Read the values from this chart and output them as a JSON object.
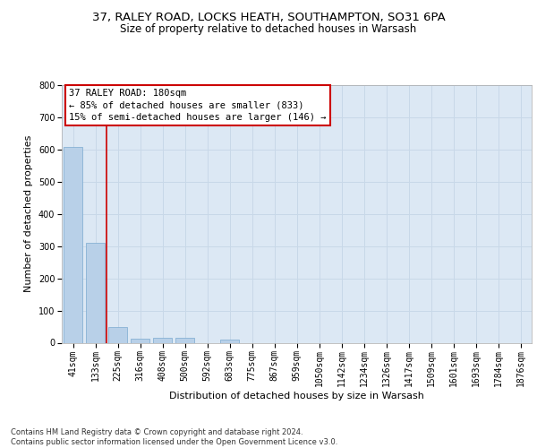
{
  "title1": "37, RALEY ROAD, LOCKS HEATH, SOUTHAMPTON, SO31 6PA",
  "title2": "Size of property relative to detached houses in Warsash",
  "xlabel": "Distribution of detached houses by size in Warsash",
  "ylabel": "Number of detached properties",
  "categories": [
    "41sqm",
    "133sqm",
    "225sqm",
    "316sqm",
    "408sqm",
    "500sqm",
    "592sqm",
    "683sqm",
    "775sqm",
    "867sqm",
    "959sqm",
    "1050sqm",
    "1142sqm",
    "1234sqm",
    "1326sqm",
    "1417sqm",
    "1509sqm",
    "1601sqm",
    "1693sqm",
    "1784sqm",
    "1876sqm"
  ],
  "values": [
    608,
    311,
    50,
    12,
    14,
    14,
    0,
    10,
    0,
    0,
    0,
    0,
    0,
    0,
    0,
    0,
    0,
    0,
    0,
    0,
    0
  ],
  "bar_color": "#b8d0e8",
  "bar_edge_color": "#7aaad0",
  "grid_color": "#c8d8e8",
  "background_color": "#dce8f4",
  "vline_color": "#cc0000",
  "annotation_text": "37 RALEY ROAD: 180sqm\n← 85% of detached houses are smaller (833)\n15% of semi-detached houses are larger (146) →",
  "annotation_box_color": "#ffffff",
  "annotation_box_edge": "#cc0000",
  "ylim": [
    0,
    800
  ],
  "yticks": [
    0,
    100,
    200,
    300,
    400,
    500,
    600,
    700,
    800
  ],
  "footer": "Contains HM Land Registry data © Crown copyright and database right 2024.\nContains public sector information licensed under the Open Government Licence v3.0.",
  "title_fontsize": 9.5,
  "subtitle_fontsize": 8.5,
  "axis_label_fontsize": 8,
  "tick_fontsize": 7,
  "annotation_fontsize": 7.5,
  "footer_fontsize": 6.0
}
